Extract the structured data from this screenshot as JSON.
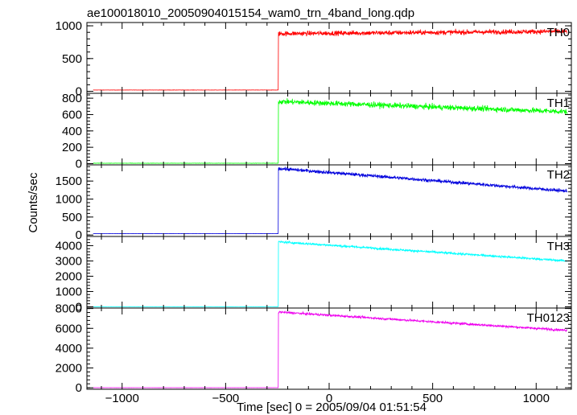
{
  "chart_data": {
    "type": "line",
    "title": "ae100018010_20050904015154_wam0_trn_4band_long.qdp",
    "xlabel": "Time [sec] 0 = 2005/09/04 01:51:54",
    "ylabel": "Counts/sec",
    "xlim": [
      -1170,
      1170
    ],
    "x_ticks": [
      -1000,
      -500,
      0,
      500,
      1000
    ],
    "x_tick_labels": [
      "−1000",
      "−500",
      "0",
      "500",
      "1000"
    ],
    "onset_time": -245,
    "x_end": 1150,
    "x_start": -1140,
    "grid": false,
    "panels": [
      {
        "name": "TH0",
        "color": "#ff0000",
        "ylim": [
          -30,
          1050
        ],
        "y_ticks": [
          0,
          500,
          1000
        ],
        "y_tick_labels": [
          "0",
          "500",
          "1000"
        ],
        "pre_level": 20,
        "post_start": 880,
        "post_end": 915,
        "noise": 35
      },
      {
        "name": "TH1",
        "color": "#00ff00",
        "ylim": [
          -15,
          860
        ],
        "y_ticks": [
          0,
          200,
          400,
          600,
          800
        ],
        "y_tick_labels": [
          "0",
          "200",
          "400",
          "600",
          "800"
        ],
        "pre_level": 5,
        "post_start": 760,
        "post_end": 635,
        "noise": 32
      },
      {
        "name": "TH2",
        "color": "#0000dd",
        "ylim": [
          -40,
          1950
        ],
        "y_ticks": [
          0,
          500,
          1000,
          1500
        ],
        "y_tick_labels": [
          "0",
          "500",
          "1000",
          "1500"
        ],
        "pre_level": 40,
        "post_start": 1850,
        "post_end": 1220,
        "noise": 45
      },
      {
        "name": "TH3",
        "color": "#00ffff",
        "ylim": [
          -80,
          4600
        ],
        "y_ticks": [
          0,
          1000,
          2000,
          3000,
          4000
        ],
        "y_tick_labels": [
          "0",
          "1000",
          "2000",
          "3000",
          "4000"
        ],
        "pre_level": 10,
        "post_start": 4250,
        "post_end": 3000,
        "noise": 70
      },
      {
        "name": "TH0123",
        "color": "#ee00ee",
        "ylim": [
          -150,
          8050
        ],
        "y_ticks": [
          0,
          2000,
          4000,
          6000,
          8000
        ],
        "y_tick_labels": [
          "0",
          "2000",
          "4000",
          "6000",
          "8000"
        ],
        "pre_level": 10,
        "post_start": 7650,
        "post_end": 5800,
        "noise": 110
      }
    ]
  }
}
